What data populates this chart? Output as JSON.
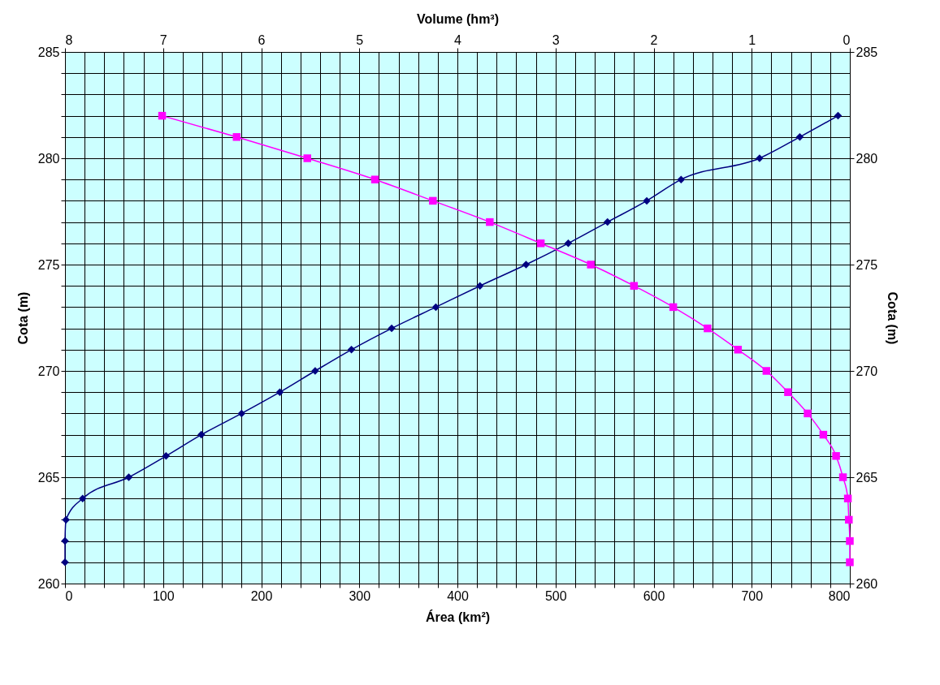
{
  "chart_data": {
    "type": "line",
    "xlabel": "Área (km²)",
    "x2label": "Volume (hm³)",
    "ylabel": "Cota (m)",
    "y2label": "Cota (m)",
    "xlim": [
      0,
      800
    ],
    "x2lim": [
      8,
      0
    ],
    "ylim": [
      260,
      285
    ],
    "y2lim": [
      260,
      285
    ],
    "xticks": [
      0,
      {
        "value": 20,
        "label": null
      },
      {
        "value": 40,
        "label": null
      },
      {
        "value": 60,
        "label": null
      },
      {
        "value": 80,
        "label": null
      },
      100,
      {
        "value": 120,
        "label": null
      },
      {
        "value": 140,
        "label": null
      },
      {
        "value": 160,
        "label": null
      },
      {
        "value": 180,
        "label": null
      },
      200,
      {
        "value": 220,
        "label": null
      },
      {
        "value": 240,
        "label": null
      },
      {
        "value": 260,
        "label": null
      },
      {
        "value": 280,
        "label": null
      },
      300,
      {
        "value": 320,
        "label": null
      },
      {
        "value": 340,
        "label": null
      },
      {
        "value": 360,
        "label": null
      },
      {
        "value": 380,
        "label": null
      },
      400,
      {
        "value": 420,
        "label": null
      },
      {
        "value": 440,
        "label": null
      },
      {
        "value": 460,
        "label": null
      },
      {
        "value": 480,
        "label": null
      },
      500,
      {
        "value": 520,
        "label": null
      },
      {
        "value": 540,
        "label": null
      },
      {
        "value": 560,
        "label": null
      },
      {
        "value": 580,
        "label": null
      },
      600,
      {
        "value": 620,
        "label": null
      },
      {
        "value": 640,
        "label": null
      },
      {
        "value": 660,
        "label": null
      },
      {
        "value": 680,
        "label": null
      },
      700,
      {
        "value": 720,
        "label": null
      },
      {
        "value": 740,
        "label": null
      },
      {
        "value": 760,
        "label": null
      },
      {
        "value": 780,
        "label": null
      },
      800
    ],
    "x2ticks": [
      8,
      7,
      6,
      5,
      4,
      3,
      2,
      1,
      0
    ],
    "yticks": [
      260,
      {
        "value": 261,
        "label": null
      },
      {
        "value": 262,
        "label": null
      },
      {
        "value": 263,
        "label": null
      },
      {
        "value": 264,
        "label": null
      },
      265,
      {
        "value": 266,
        "label": null
      },
      {
        "value": 267,
        "label": null
      },
      {
        "value": 268,
        "label": null
      },
      {
        "value": 269,
        "label": null
      },
      270,
      {
        "value": 271,
        "label": null
      },
      {
        "value": 272,
        "label": null
      },
      {
        "value": 273,
        "label": null
      },
      {
        "value": 274,
        "label": null
      },
      275,
      {
        "value": 276,
        "label": null
      },
      {
        "value": 277,
        "label": null
      },
      {
        "value": 278,
        "label": null
      },
      {
        "value": 279,
        "label": null
      },
      280,
      {
        "value": 281,
        "label": null
      },
      {
        "value": 282,
        "label": null
      },
      {
        "value": 283,
        "label": null
      },
      {
        "value": 284,
        "label": null
      },
      285
    ],
    "y2ticks": [
      260,
      265,
      270,
      275,
      280,
      285
    ],
    "grid": true,
    "series": [
      {
        "color": "#000080",
        "marker": "diamond",
        "x": [
          0,
          0,
          1,
          18,
          65,
          103,
          139,
          180,
          219,
          255,
          292,
          333,
          378,
          423,
          470,
          513,
          553,
          593,
          628,
          708,
          749,
          788
        ],
        "values": [
          261,
          262,
          263,
          264,
          265,
          266,
          267,
          268,
          269,
          270,
          271,
          272,
          273,
          274,
          275,
          276,
          277,
          278,
          279,
          280,
          281,
          282
        ]
      },
      {
        "color": "#ff00ff",
        "marker": "square",
        "axis": "x2",
        "x": [
          0,
          0,
          0.01,
          0.02,
          0.07,
          0.14,
          0.27,
          0.43,
          0.63,
          0.85,
          1.14,
          1.45,
          1.8,
          2.2,
          2.64,
          3.15,
          3.67,
          4.25,
          4.84,
          5.53,
          6.25,
          7.01
        ],
        "values": [
          261,
          262,
          263,
          264,
          265,
          266,
          267,
          268,
          269,
          270,
          271,
          272,
          273,
          274,
          275,
          276,
          277,
          278,
          279,
          280,
          281,
          282
        ]
      }
    ]
  }
}
